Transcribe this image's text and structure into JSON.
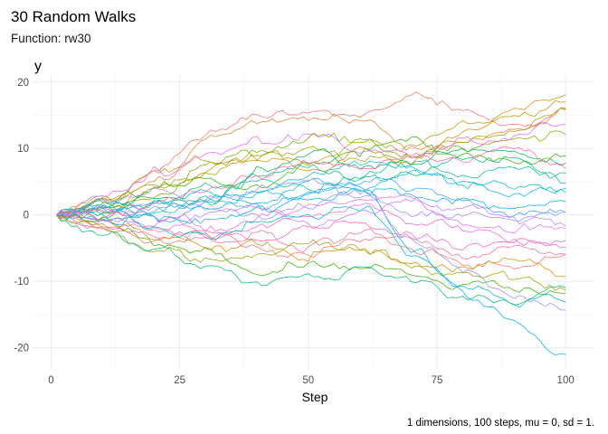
{
  "chart_data": {
    "type": "line",
    "title": "30 Random Walks",
    "subtitle": "Function: rw30",
    "xlabel": "Step",
    "ylabel": "y",
    "caption": "1 dimensions, 100 steps, mu = 0, sd = 1.",
    "xlim": [
      1,
      100
    ],
    "ylim": [
      -22,
      20
    ],
    "x_ticks": [
      0,
      25,
      50,
      75,
      100
    ],
    "y_ticks": [
      -20,
      -10,
      0,
      10,
      20
    ],
    "grid": true,
    "legend": "none",
    "n_walks": 30,
    "n_steps": 100,
    "palette": [
      "#F8766D",
      "#EA8331",
      "#D89000",
      "#C09B00",
      "#A3A500",
      "#7CAE00",
      "#39B600",
      "#00BB4E",
      "#00BF7D",
      "#00C1A3",
      "#00BFC4",
      "#00BAE0",
      "#00B0F6",
      "#35A2FF",
      "#9590FF",
      "#C77CFF",
      "#E76BF3",
      "#FA62DB",
      "#FF62BC",
      "#FF6C91",
      "#F8766D",
      "#D89000",
      "#A3A500",
      "#39B600",
      "#00BF7D",
      "#00BFC4",
      "#00B0F6",
      "#9590FF",
      "#E76BF3",
      "#FF62BC"
    ],
    "series_knots": [
      [
        0,
        2,
        7,
        12,
        15,
        16,
        15,
        18,
        16,
        13,
        16
      ],
      [
        0,
        1,
        5,
        11,
        14,
        15,
        14,
        10,
        11,
        13,
        15
      ],
      [
        0,
        2,
        6,
        8,
        9,
        7,
        10,
        8,
        12,
        16,
        18
      ],
      [
        0,
        1,
        4,
        7,
        9,
        8,
        11,
        10,
        14,
        15,
        17
      ],
      [
        0,
        3,
        5,
        6,
        9,
        10,
        8,
        9,
        12,
        13,
        16
      ],
      [
        0,
        1,
        3,
        8,
        10,
        12,
        11,
        9,
        10,
        11,
        12
      ],
      [
        0,
        2,
        4,
        5,
        4,
        8,
        10,
        11,
        9,
        8,
        9
      ],
      [
        0,
        1,
        3,
        2,
        6,
        9,
        7,
        8,
        10,
        9,
        8
      ],
      [
        0,
        -1,
        2,
        4,
        6,
        7,
        5,
        6,
        9,
        8,
        6
      ],
      [
        0,
        2,
        1,
        3,
        5,
        4,
        6,
        8,
        6,
        7,
        5
      ],
      [
        0,
        1,
        0,
        2,
        3,
        6,
        8,
        7,
        5,
        4,
        4
      ],
      [
        0,
        -1,
        1,
        3,
        2,
        5,
        4,
        6,
        5,
        3,
        3
      ],
      [
        0,
        0,
        2,
        1,
        3,
        2,
        4,
        3,
        2,
        1,
        2
      ],
      [
        0,
        1,
        -1,
        2,
        1,
        3,
        5,
        4,
        2,
        0,
        1
      ],
      [
        0,
        2,
        3,
        1,
        0,
        2,
        3,
        1,
        0,
        -1,
        0
      ],
      [
        0,
        -1,
        -2,
        0,
        1,
        -1,
        0,
        2,
        1,
        -1,
        -1
      ],
      [
        0,
        1,
        0,
        -2,
        -1,
        1,
        3,
        2,
        -1,
        -2,
        -2
      ],
      [
        0,
        -2,
        -1,
        -3,
        -2,
        0,
        1,
        -1,
        -2,
        -4,
        -4
      ],
      [
        0,
        -1,
        -3,
        -2,
        -4,
        -2,
        -1,
        -3,
        -5,
        -4,
        -5
      ],
      [
        0,
        0,
        -2,
        -4,
        -3,
        -5,
        -3,
        -4,
        -6,
        -5,
        -6
      ],
      [
        0,
        -2,
        -4,
        -3,
        -5,
        -6,
        -4,
        -5,
        -7,
        -8,
        -6
      ],
      [
        0,
        -1,
        -3,
        -5,
        -4,
        -6,
        -5,
        -7,
        -8,
        -7,
        -9
      ],
      [
        0,
        -2,
        -5,
        -7,
        -6,
        -4,
        -5,
        -8,
        -9,
        -10,
        -11
      ],
      [
        0,
        -1,
        -4,
        -6,
        -9,
        -7,
        -8,
        -9,
        -10,
        -11,
        -12
      ],
      [
        0,
        -3,
        -5,
        -8,
        -10,
        -9,
        -8,
        -10,
        -12,
        -13,
        -11
      ],
      [
        0,
        1,
        -2,
        -3,
        -1,
        0,
        1,
        -6,
        -10,
        -13,
        -13
      ],
      [
        0,
        2,
        0,
        -1,
        1,
        3,
        4,
        -5,
        -12,
        -16,
        -21
      ],
      [
        0,
        -1,
        1,
        2,
        4,
        5,
        3,
        -4,
        -8,
        -12,
        -14
      ],
      [
        0,
        3,
        6,
        9,
        11,
        12,
        10,
        9,
        11,
        12,
        14
      ],
      [
        0,
        1,
        2,
        4,
        6,
        8,
        7,
        9,
        8,
        10,
        7
      ]
    ]
  }
}
